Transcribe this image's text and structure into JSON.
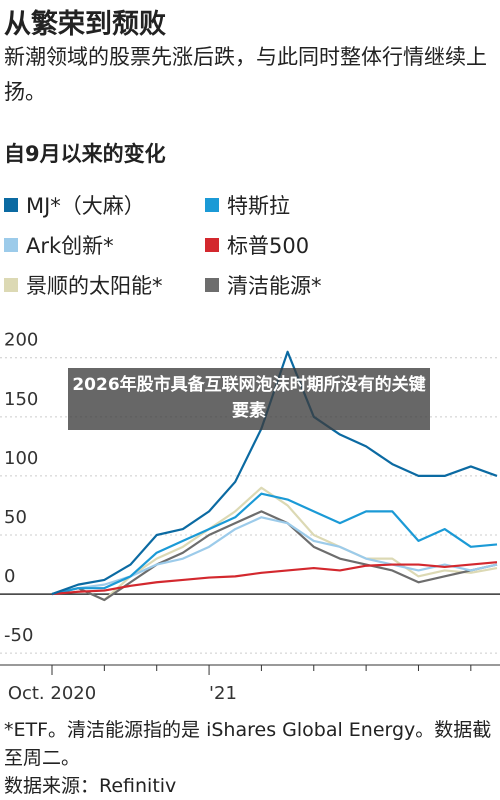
{
  "chart_data": {
    "type": "line",
    "title": "从繁荣到颓败",
    "subtitle": "新潮领域的股票先涨后跌，与此同时整体行情继续上扬。",
    "section_title": "自9月以来的变化",
    "categories": [
      "Oct. 2020",
      null,
      null,
      null,
      null,
      null,
      "'21",
      null,
      null,
      null,
      null,
      null,
      null,
      null,
      null,
      null,
      null,
      null
    ],
    "series": [
      {
        "name": "MJ*（大麻）",
        "color": "#0b6aa2",
        "values": [
          0,
          8,
          12,
          25,
          50,
          55,
          70,
          95,
          140,
          205,
          150,
          135,
          125,
          110,
          100,
          100,
          108,
          100
        ]
      },
      {
        "name": "特斯拉",
        "color": "#1b9ad6",
        "values": [
          0,
          5,
          5,
          15,
          35,
          45,
          55,
          65,
          85,
          80,
          70,
          60,
          70,
          70,
          45,
          55,
          40,
          42
        ]
      },
      {
        "name": "Ark创新*",
        "color": "#9ccbea",
        "values": [
          0,
          5,
          8,
          15,
          25,
          30,
          40,
          55,
          65,
          60,
          45,
          40,
          30,
          25,
          20,
          25,
          20,
          25
        ]
      },
      {
        "name": "标普500",
        "color": "#d3282e",
        "values": [
          0,
          2,
          3,
          7,
          10,
          12,
          14,
          15,
          18,
          20,
          22,
          20,
          24,
          25,
          25,
          23,
          25,
          27
        ]
      },
      {
        "name": "景顺的太阳能*",
        "color": "#dcd9b4",
        "values": [
          0,
          5,
          -5,
          15,
          30,
          40,
          55,
          70,
          90,
          75,
          50,
          40,
          30,
          30,
          15,
          20,
          18,
          22
        ]
      },
      {
        "name": "清洁能源*",
        "color": "#6d6d6d",
        "values": [
          0,
          5,
          -5,
          10,
          25,
          35,
          50,
          60,
          70,
          60,
          40,
          30,
          25,
          20,
          10,
          15,
          20,
          25
        ]
      }
    ],
    "ylim": [
      -60,
      215
    ],
    "yticks": [
      200,
      150,
      100,
      50,
      0,
      -50
    ],
    "grid": true,
    "footnote": "*ETF。清洁能源指的是 iShares Global Energy。数据截至周二。",
    "source": "数据来源：Refinitiv"
  },
  "overlay": {
    "text": "2026年股市具备互联网泡沫时期所没有的关键要素"
  }
}
